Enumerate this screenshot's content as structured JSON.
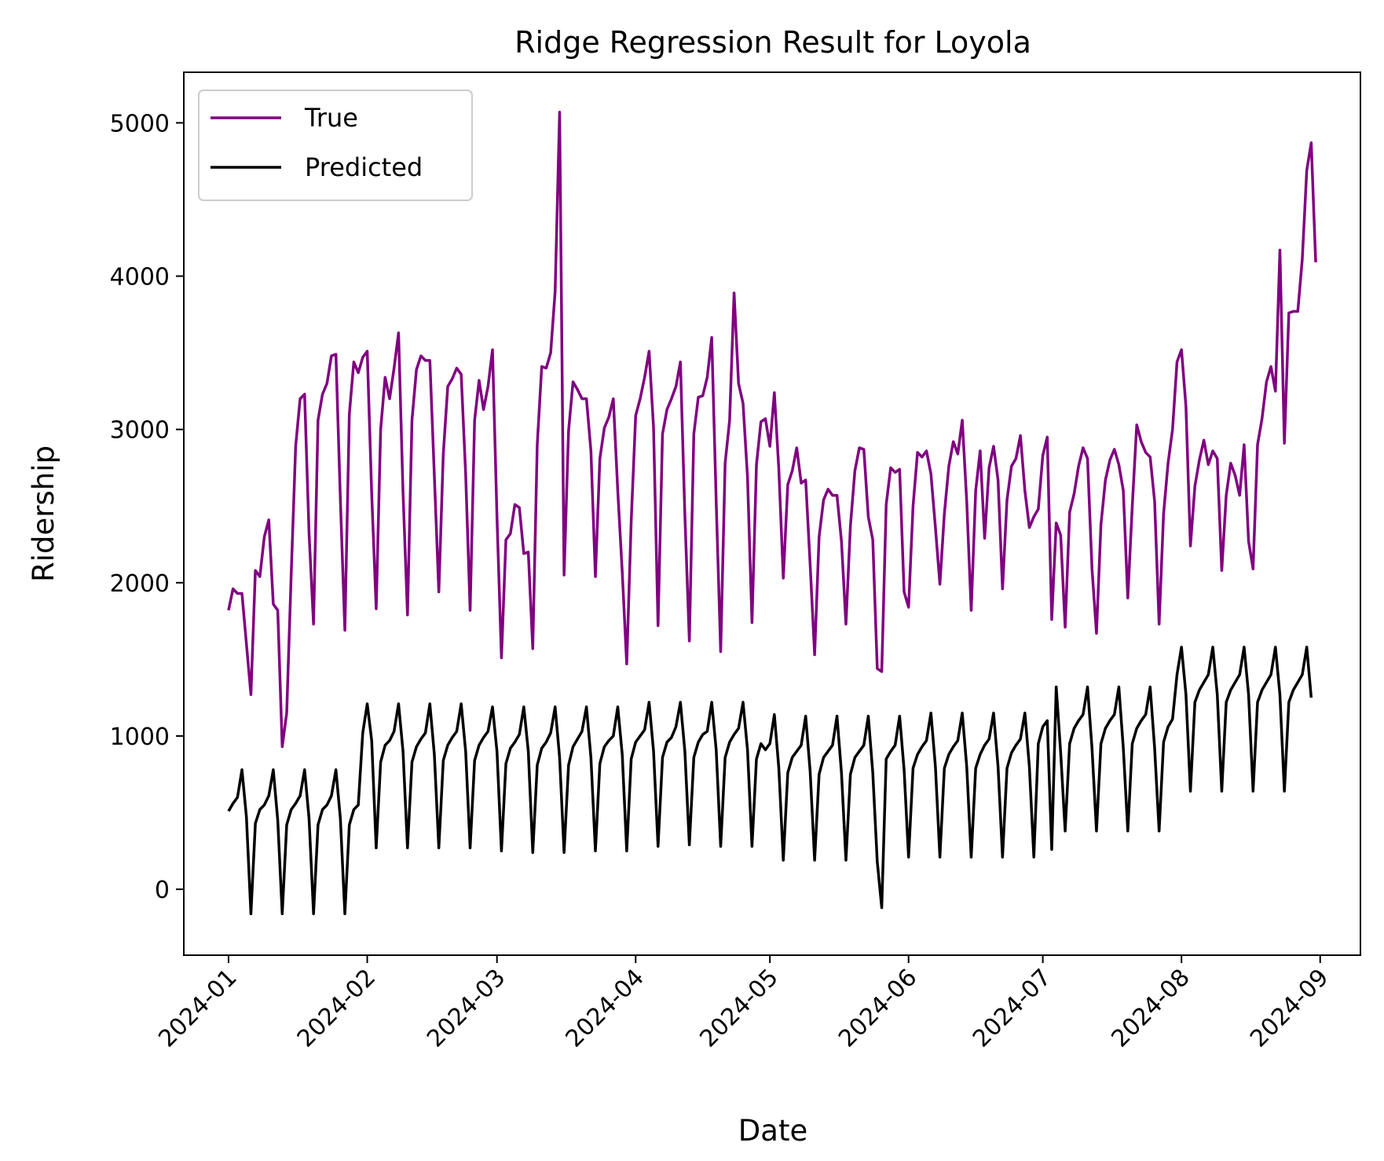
{
  "chart_data": {
    "type": "line",
    "title": "Ridge Regression Result for Loyola",
    "xlabel": "Date",
    "ylabel": "Ridership",
    "x_start": "2024-01-01",
    "x_end": "2024-08-31",
    "xlim": [
      "2023-12-22",
      "2024-09-10"
    ],
    "ylim": [
      -430,
      5330
    ],
    "x_ticks": [
      "2024-01",
      "2024-02",
      "2024-03",
      "2024-04",
      "2024-05",
      "2024-06",
      "2024-07",
      "2024-08",
      "2024-09"
    ],
    "y_ticks": [
      0,
      1000,
      2000,
      3000,
      4000,
      5000
    ],
    "legend_position": "upper-left",
    "grid": false,
    "series": [
      {
        "name": "True",
        "color": "#800080",
        "values": [
          1820,
          1960,
          1930,
          1930,
          1600,
          1270,
          2080,
          2040,
          2300,
          2410,
          1860,
          1820,
          930,
          1150,
          2050,
          2890,
          3200,
          3230,
          2320,
          1730,
          3060,
          3230,
          3300,
          3480,
          3490,
          2540,
          1690,
          3100,
          3440,
          3370,
          3470,
          3510,
          2580,
          1830,
          3000,
          3340,
          3200,
          3400,
          3630,
          2590,
          1790,
          3060,
          3390,
          3480,
          3450,
          3450,
          2700,
          1940,
          2840,
          3280,
          3330,
          3400,
          3360,
          2710,
          1820,
          3060,
          3320,
          3130,
          3280,
          3520,
          2430,
          1510,
          2280,
          2320,
          2510,
          2490,
          2190,
          2200,
          1570,
          2900,
          3410,
          3400,
          3500,
          3900,
          5070,
          2050,
          2990,
          3310,
          3260,
          3200,
          3200,
          2860,
          2040,
          2810,
          3010,
          3080,
          3200,
          2600,
          2070,
          1470,
          2400,
          3090,
          3200,
          3340,
          3510,
          3010,
          1720,
          2970,
          3130,
          3200,
          3280,
          3440,
          2440,
          1620,
          2970,
          3210,
          3220,
          3340,
          3600,
          2530,
          1550,
          2780,
          3060,
          3890,
          3300,
          3170,
          2690,
          1740,
          2770,
          3050,
          3070,
          2890,
          3240,
          2740,
          2030,
          2640,
          2730,
          2880,
          2650,
          2670,
          2120,
          1530,
          2300,
          2540,
          2610,
          2570,
          2570,
          2270,
          1730,
          2370,
          2730,
          2880,
          2870,
          2430,
          2280,
          1440,
          1420,
          2510,
          2750,
          2720,
          2740,
          1940,
          1840,
          2500,
          2850,
          2820,
          2860,
          2710,
          2360,
          1990,
          2450,
          2760,
          2920,
          2840,
          3060,
          2530,
          1820,
          2600,
          2860,
          2290,
          2750,
          2890,
          2670,
          1960,
          2540,
          2760,
          2810,
          2960,
          2600,
          2360,
          2430,
          2480,
          2830,
          2950,
          1760,
          2390,
          2310,
          1710,
          2460,
          2580,
          2760,
          2880,
          2810,
          2090,
          1670,
          2380,
          2670,
          2800,
          2870,
          2770,
          2600,
          1900,
          2500,
          3030,
          2920,
          2850,
          2820,
          2530,
          1730,
          2450,
          2780,
          3000,
          3440,
          3520,
          3150,
          2240,
          2630,
          2800,
          2930,
          2770,
          2860,
          2810,
          2080,
          2570,
          2780,
          2700,
          2570,
          2900,
          2270,
          2090,
          2900,
          3070,
          3310,
          3410,
          3250,
          4170,
          2910,
          3760,
          3770,
          3770,
          4110,
          4690,
          4870,
          4090
        ]
      },
      {
        "name": "Predicted",
        "color": "#000000",
        "values": [
          510,
          560,
          600,
          780,
          470,
          -160,
          430,
          520,
          550,
          610,
          780,
          450,
          -160,
          420,
          520,
          560,
          610,
          780,
          460,
          -160,
          420,
          520,
          550,
          610,
          780,
          460,
          -160,
          420,
          520,
          550,
          1020,
          1210,
          970,
          270,
          830,
          940,
          970,
          1030,
          1210,
          900,
          270,
          830,
          930,
          980,
          1020,
          1210,
          880,
          270,
          840,
          940,
          990,
          1030,
          1210,
          900,
          270,
          840,
          940,
          990,
          1030,
          1190,
          900,
          250,
          820,
          920,
          960,
          1010,
          1190,
          900,
          240,
          810,
          920,
          960,
          1020,
          1190,
          860,
          240,
          810,
          930,
          980,
          1030,
          1190,
          860,
          250,
          820,
          930,
          970,
          1000,
          1190,
          880,
          250,
          850,
          960,
          1000,
          1040,
          1220,
          900,
          280,
          860,
          960,
          990,
          1060,
          1220,
          900,
          290,
          860,
          960,
          1010,
          1030,
          1220,
          910,
          280,
          860,
          960,
          1010,
          1050,
          1220,
          910,
          280,
          850,
          950,
          910,
          950,
          1140,
          790,
          190,
          760,
          860,
          900,
          940,
          1130,
          770,
          190,
          750,
          860,
          900,
          940,
          1130,
          760,
          190,
          750,
          860,
          900,
          940,
          1130,
          760,
          180,
          -120,
          850,
          900,
          940,
          1130,
          780,
          210,
          790,
          880,
          930,
          970,
          1150,
          800,
          210,
          790,
          880,
          930,
          970,
          1150,
          800,
          210,
          790,
          880,
          940,
          980,
          1150,
          800,
          210,
          790,
          890,
          940,
          980,
          1150,
          800,
          210,
          950,
          1060,
          1100,
          260,
          1320,
          890,
          380,
          950,
          1050,
          1100,
          1140,
          1320,
          920,
          380,
          950,
          1050,
          1100,
          1140,
          1320,
          920,
          380,
          950,
          1050,
          1100,
          1140,
          1320,
          920,
          380,
          960,
          1060,
          1110,
          1400,
          1580,
          1270,
          640,
          1220,
          1300,
          1350,
          1400,
          1580,
          1270,
          640,
          1220,
          1300,
          1350,
          1400,
          1580,
          1270,
          640,
          1220,
          1300,
          1350,
          1400,
          1580,
          1270,
          640,
          1220,
          1300,
          1350,
          1400,
          1580,
          1250
        ]
      }
    ]
  }
}
